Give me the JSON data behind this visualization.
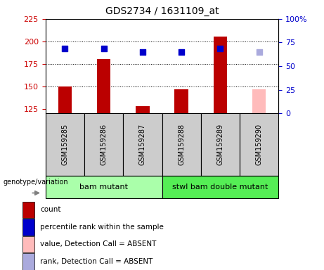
{
  "title": "GDS2734 / 1631109_at",
  "samples": [
    "GSM159285",
    "GSM159286",
    "GSM159287",
    "GSM159288",
    "GSM159289",
    "GSM159290"
  ],
  "bar_values": [
    150,
    180,
    128,
    147,
    205,
    147
  ],
  "bar_absent": [
    false,
    false,
    false,
    false,
    false,
    true
  ],
  "rank_values": [
    192,
    192,
    188,
    188,
    192,
    188
  ],
  "rank_absent": [
    false,
    false,
    false,
    false,
    false,
    true
  ],
  "bar_bottom": 120,
  "ylim_left": [
    120,
    225
  ],
  "ylim_right": [
    0,
    100
  ],
  "yticks_left": [
    125,
    150,
    175,
    200,
    225
  ],
  "yticks_right": [
    0,
    25,
    50,
    75,
    100
  ],
  "ytick_right_labels": [
    "0",
    "25",
    "50",
    "75",
    "100%"
  ],
  "group1_label": "bam mutant",
  "group2_label": "stwl bam double mutant",
  "bar_color_present": "#bb0000",
  "bar_color_absent": "#ffbbbb",
  "rank_color_present": "#0000cc",
  "rank_color_absent": "#aaaadd",
  "group1_color": "#aaffaa",
  "group2_color": "#55ee55",
  "sample_box_color": "#cccccc",
  "bg_color": "#ffffff",
  "ylabel_left_color": "#cc0000",
  "ylabel_right_color": "#0000cc",
  "legend_items": [
    "count",
    "percentile rank within the sample",
    "value, Detection Call = ABSENT",
    "rank, Detection Call = ABSENT"
  ],
  "legend_colors": [
    "#bb0000",
    "#0000cc",
    "#ffbbbb",
    "#aaaadd"
  ],
  "rank_square_size": 40,
  "bar_width": 0.35
}
